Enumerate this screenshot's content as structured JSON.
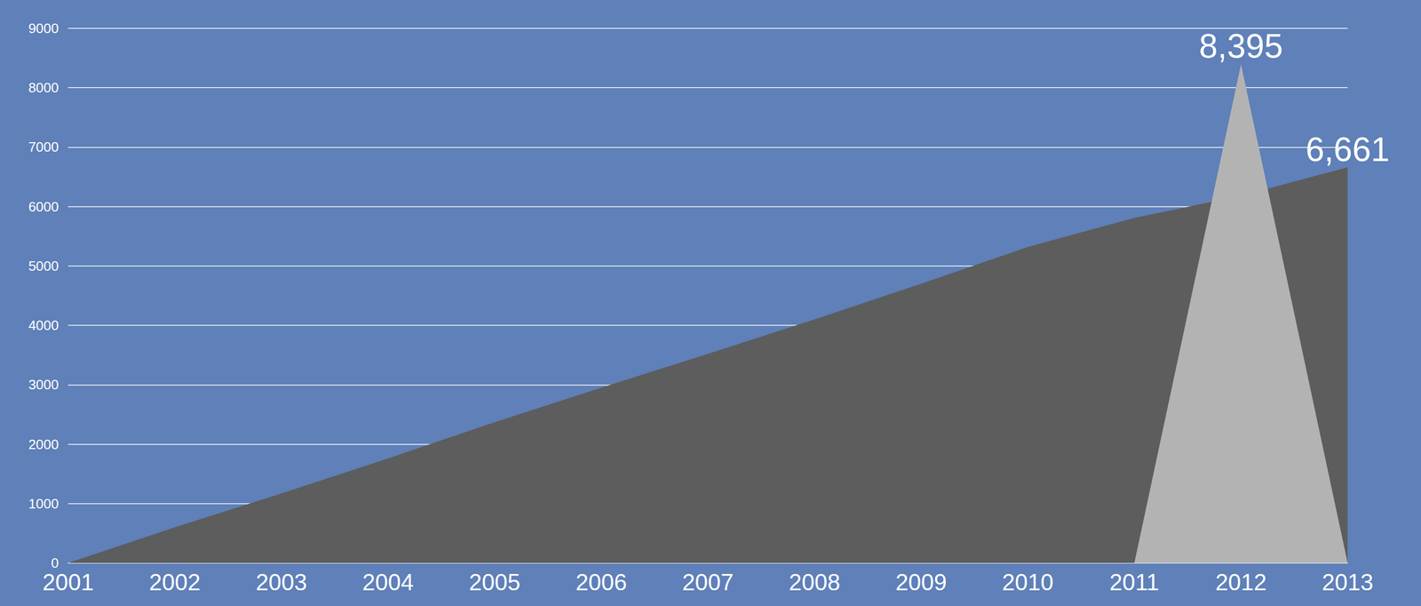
{
  "chart_data": {
    "type": "area",
    "categories": [
      "2001",
      "2002",
      "2003",
      "2004",
      "2005",
      "2006",
      "2007",
      "2008",
      "2009",
      "2010",
      "2011",
      "2012",
      "2013"
    ],
    "series": [
      {
        "color": "#5d5d5d",
        "values": [
          0,
          600,
          1170,
          1760,
          2370,
          2950,
          3520,
          4100,
          4700,
          5320,
          5810,
          6180,
          6661
        ],
        "value_labels": [
          null,
          null,
          null,
          null,
          null,
          null,
          null,
          null,
          null,
          null,
          null,
          null,
          "6,661"
        ]
      },
      {
        "color": "#b3b3b3",
        "values": [
          null,
          null,
          null,
          null,
          null,
          null,
          null,
          null,
          null,
          null,
          0,
          8395,
          0
        ],
        "value_labels": [
          null,
          null,
          null,
          null,
          null,
          null,
          null,
          null,
          null,
          null,
          null,
          "8,395",
          null
        ]
      }
    ],
    "ylim": [
      0,
      9000
    ],
    "yticks": [
      0,
      1000,
      2000,
      3000,
      4000,
      5000,
      6000,
      7000,
      8000,
      9000
    ],
    "grid": true,
    "data_labels": true
  }
}
